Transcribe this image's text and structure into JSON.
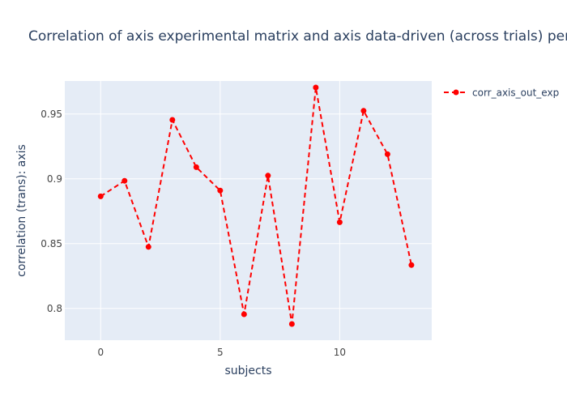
{
  "chart_data": {
    "type": "line",
    "title": "Correlation of axis experimental matrix and axis data-driven (across trials) per subject",
    "xlabel": "subjects",
    "ylabel": "correlation (trans): axis",
    "xlim": [
      -1.5,
      13.85
    ],
    "ylim": [
      0.7755,
      0.9755
    ],
    "x_ticks": [
      0,
      5,
      10
    ],
    "x_tick_labels": [
      "0",
      "5",
      "10"
    ],
    "y_ticks": [
      0.8,
      0.85,
      0.9,
      0.95
    ],
    "y_tick_labels": [
      "0.8",
      "0.85",
      "0.9",
      "0.95"
    ],
    "grid": true,
    "legend_position": "top-right",
    "series": [
      {
        "name": "corr_axis_out_exp",
        "color": "#ff0000",
        "line_style": "dash",
        "marker": "circle",
        "x": [
          0,
          1,
          2,
          3,
          4,
          5,
          6,
          7,
          8,
          9,
          10,
          11,
          12,
          13
        ],
        "values": [
          0.8865,
          0.8985,
          0.8475,
          0.9455,
          0.909,
          0.891,
          0.7955,
          0.9025,
          0.788,
          0.9705,
          0.8665,
          0.9525,
          0.919,
          0.8335
        ]
      }
    ]
  },
  "colors": {
    "plot_background": "#e5ecf6",
    "grid": "#ffffff",
    "text": "#2a3f5f",
    "tick_text": "#444444"
  }
}
